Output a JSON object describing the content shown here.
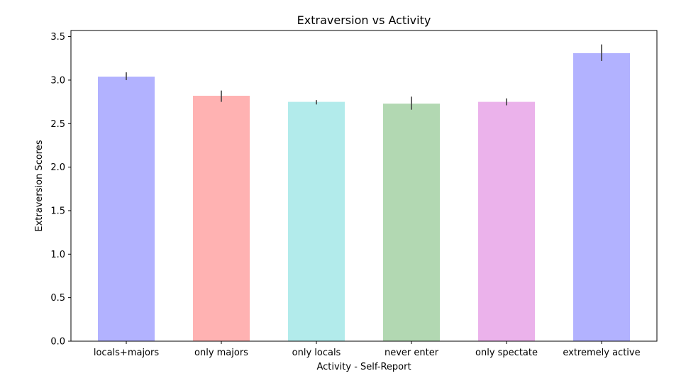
{
  "chart_data": {
    "type": "bar",
    "title": "Extraversion vs Activity",
    "xlabel": "Activity - Self-Report",
    "ylabel": "Extraversion Scores",
    "categories": [
      "locals+majors",
      "only majors",
      "only locals",
      "never enter",
      "only spectate",
      "extremely active"
    ],
    "values": [
      3.04,
      2.82,
      2.75,
      2.73,
      2.75,
      3.31
    ],
    "error_low": [
      3.0,
      2.75,
      2.72,
      2.66,
      2.71,
      3.22
    ],
    "error_high": [
      3.09,
      2.88,
      2.77,
      2.81,
      2.79,
      3.41
    ],
    "colors": [
      "#b2b2ff",
      "#ffb2b2",
      "#b2ebeb",
      "#b2d8b2",
      "#ebb2eb",
      "#b2b2ff"
    ],
    "ylim": [
      0,
      3.57
    ],
    "yticks": [
      "0.0",
      "0.5",
      "1.0",
      "1.5",
      "2.0",
      "2.5",
      "3.0",
      "3.5"
    ],
    "grid": false,
    "legend": false
  }
}
